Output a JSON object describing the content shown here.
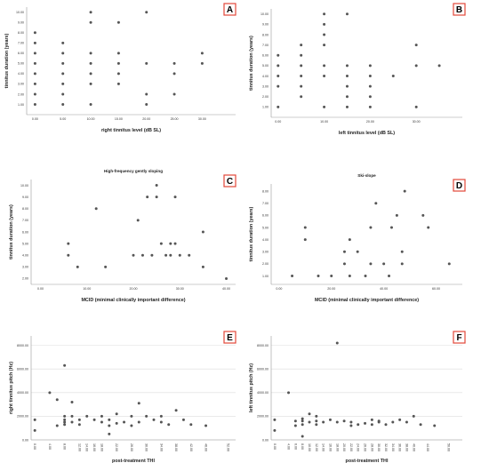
{
  "figure": {
    "panels": [
      {
        "id": "A",
        "title": "",
        "xlabel": "right tinnitus level (dB SL)",
        "ylabel": "tinnitus duration (years)",
        "xlim": [
          -1.5,
          36
        ],
        "ylim": [
          0,
          10.5
        ],
        "xticks": [
          0,
          5,
          10,
          15,
          20,
          25,
          30
        ],
        "yticks": [
          1,
          2,
          3,
          4,
          5,
          6,
          7,
          8,
          9,
          10
        ],
        "xfmt": 2,
        "yfmt": 2,
        "xrot": false,
        "ygrid": false
      },
      {
        "id": "B",
        "title": "",
        "xlabel": "left tinnitus level (dB SL)",
        "ylabel": "tinnitus duration (years)",
        "xlim": [
          -1.5,
          40
        ],
        "ylim": [
          0,
          10.5
        ],
        "xticks": [
          0,
          10,
          20,
          30
        ],
        "yticks": [
          1,
          2,
          3,
          4,
          5,
          6,
          7,
          8,
          9,
          10
        ],
        "xfmt": 2,
        "yfmt": 2,
        "xrot": false,
        "ygrid": false
      },
      {
        "id": "C",
        "title": "High-frequency gently sloping",
        "xlabel": "MCID (minimal clinically important difference)",
        "ylabel": "tinnitus duration (years)",
        "xlim": [
          -2,
          42
        ],
        "ylim": [
          1.5,
          10.5
        ],
        "xticks": [
          0,
          10,
          20,
          30,
          40
        ],
        "yticks": [
          2,
          3,
          4,
          5,
          6,
          7,
          8,
          9,
          10
        ],
        "xfmt": 2,
        "yfmt": 2,
        "xrot": false,
        "ygrid": false
      },
      {
        "id": "D",
        "title": "Ski-slope",
        "xlabel": "MCID (minimal clinically important difference)",
        "ylabel": "tinnitus duration (years)",
        "xlim": [
          -3,
          70
        ],
        "ylim": [
          0.3,
          8.6
        ],
        "xticks": [
          0,
          20,
          40,
          60
        ],
        "yticks": [
          1,
          2,
          3,
          4,
          5,
          6,
          7,
          8
        ],
        "xfmt": 2,
        "yfmt": 2,
        "xrot": false,
        "ygrid": false
      },
      {
        "id": "E",
        "title": "",
        "xlabel": "post-treatment THI",
        "ylabel": "right tinnitus pitch (Hz)",
        "xlim": [
          -1,
          54
        ],
        "ylim": [
          0,
          8800
        ],
        "xticks": [
          0,
          4,
          8,
          12,
          14,
          16,
          18,
          22,
          26,
          30,
          34,
          38,
          42,
          46,
          52
        ],
        "yticks": [
          0,
          2000,
          4000,
          6000,
          8000
        ],
        "xfmt": 2,
        "yfmt": 2,
        "xrot": true,
        "ygrid": true
      },
      {
        "id": "F",
        "title": "",
        "xlabel": "post-treatment THI",
        "ylabel": "left tinnitus pitch (Hz)",
        "xlim": [
          -1,
          54
        ],
        "ylim": [
          0,
          8800
        ],
        "xticks": [
          0,
          4,
          6,
          8,
          10,
          12,
          14,
          16,
          18,
          20,
          22,
          24,
          26,
          28,
          30,
          32,
          34,
          36,
          38,
          40,
          44,
          50
        ],
        "yticks": [
          0,
          2000,
          4000,
          6000,
          8000
        ],
        "xfmt": 2,
        "yfmt": 2,
        "xrot": true,
        "ygrid": true
      }
    ]
  },
  "chart_data": [
    {
      "panel": "A",
      "type": "scatter",
      "points": [
        [
          0,
          1
        ],
        [
          0,
          2
        ],
        [
          0,
          3
        ],
        [
          0,
          4
        ],
        [
          0,
          5
        ],
        [
          0,
          6
        ],
        [
          0,
          7
        ],
        [
          0,
          8
        ],
        [
          5,
          1
        ],
        [
          5,
          2
        ],
        [
          5,
          3
        ],
        [
          5,
          4
        ],
        [
          5,
          5
        ],
        [
          5,
          6
        ],
        [
          5,
          7
        ],
        [
          10,
          1
        ],
        [
          10,
          3
        ],
        [
          10,
          4
        ],
        [
          10,
          5
        ],
        [
          10,
          6
        ],
        [
          10,
          9
        ],
        [
          10,
          10
        ],
        [
          15,
          3
        ],
        [
          15,
          4
        ],
        [
          15,
          5
        ],
        [
          15,
          6
        ],
        [
          15,
          9
        ],
        [
          20,
          1
        ],
        [
          20,
          2
        ],
        [
          20,
          5
        ],
        [
          20,
          10
        ],
        [
          25,
          2
        ],
        [
          25,
          4
        ],
        [
          25,
          5
        ],
        [
          30,
          5
        ],
        [
          30,
          6
        ]
      ]
    },
    {
      "panel": "B",
      "type": "scatter",
      "points": [
        [
          0,
          1
        ],
        [
          0,
          3
        ],
        [
          0,
          4
        ],
        [
          0,
          5
        ],
        [
          0,
          6
        ],
        [
          5,
          2
        ],
        [
          5,
          3
        ],
        [
          5,
          4
        ],
        [
          5,
          5
        ],
        [
          5,
          6
        ],
        [
          5,
          7
        ],
        [
          10,
          1
        ],
        [
          10,
          4
        ],
        [
          10,
          5
        ],
        [
          10,
          7
        ],
        [
          10,
          8
        ],
        [
          10,
          9
        ],
        [
          10,
          10
        ],
        [
          15,
          1
        ],
        [
          15,
          2
        ],
        [
          15,
          3
        ],
        [
          15,
          4
        ],
        [
          15,
          5
        ],
        [
          15,
          10
        ],
        [
          20,
          1
        ],
        [
          20,
          2
        ],
        [
          20,
          3
        ],
        [
          20,
          4
        ],
        [
          20,
          5
        ],
        [
          25,
          4
        ],
        [
          30,
          1
        ],
        [
          30,
          5
        ],
        [
          30,
          7
        ],
        [
          35,
          5
        ]
      ]
    },
    {
      "panel": "C",
      "type": "scatter",
      "points": [
        [
          6,
          4
        ],
        [
          6,
          5
        ],
        [
          8,
          3
        ],
        [
          12,
          8
        ],
        [
          14,
          3
        ],
        [
          20,
          4
        ],
        [
          21,
          7
        ],
        [
          22,
          4
        ],
        [
          23,
          9
        ],
        [
          24,
          4
        ],
        [
          25,
          9
        ],
        [
          25,
          10
        ],
        [
          26,
          5
        ],
        [
          27,
          4
        ],
        [
          28,
          5
        ],
        [
          28,
          4
        ],
        [
          29,
          9
        ],
        [
          29,
          5
        ],
        [
          30,
          4
        ],
        [
          32,
          4
        ],
        [
          35,
          3
        ],
        [
          35,
          6
        ],
        [
          40,
          2
        ]
      ]
    },
    {
      "panel": "D",
      "type": "scatter",
      "points": [
        [
          5,
          1
        ],
        [
          10,
          4
        ],
        [
          10,
          5
        ],
        [
          15,
          1
        ],
        [
          20,
          1
        ],
        [
          25,
          2
        ],
        [
          25,
          3
        ],
        [
          27,
          1
        ],
        [
          27,
          4
        ],
        [
          30,
          3
        ],
        [
          33,
          1
        ],
        [
          35,
          5
        ],
        [
          35,
          2
        ],
        [
          37,
          7
        ],
        [
          40,
          2
        ],
        [
          42,
          1
        ],
        [
          43,
          5
        ],
        [
          45,
          6
        ],
        [
          47,
          2
        ],
        [
          47,
          3
        ],
        [
          48,
          8
        ],
        [
          55,
          6
        ],
        [
          57,
          5
        ],
        [
          65,
          2
        ]
      ]
    },
    {
      "panel": "E",
      "type": "scatter",
      "points": [
        [
          0,
          800
        ],
        [
          0,
          1700
        ],
        [
          4,
          4000
        ],
        [
          6,
          1200
        ],
        [
          6,
          3400
        ],
        [
          8,
          1300
        ],
        [
          8,
          1500
        ],
        [
          8,
          1700
        ],
        [
          8,
          2000
        ],
        [
          8,
          6300
        ],
        [
          10,
          1500
        ],
        [
          10,
          2000
        ],
        [
          10,
          3200
        ],
        [
          12,
          1300
        ],
        [
          12,
          1700
        ],
        [
          14,
          2000
        ],
        [
          16,
          1700
        ],
        [
          18,
          1500
        ],
        [
          18,
          2000
        ],
        [
          20,
          500
        ],
        [
          20,
          1200
        ],
        [
          20,
          1700
        ],
        [
          22,
          1400
        ],
        [
          22,
          2200
        ],
        [
          24,
          1500
        ],
        [
          26,
          1200
        ],
        [
          26,
          2000
        ],
        [
          28,
          1500
        ],
        [
          28,
          3100
        ],
        [
          30,
          2000
        ],
        [
          32,
          1700
        ],
        [
          34,
          1500
        ],
        [
          34,
          2000
        ],
        [
          36,
          1300
        ],
        [
          38,
          2500
        ],
        [
          40,
          1700
        ],
        [
          42,
          1300
        ],
        [
          46,
          1200
        ]
      ]
    },
    {
      "panel": "F",
      "type": "scatter",
      "points": [
        [
          0,
          800
        ],
        [
          0,
          1700
        ],
        [
          4,
          4000
        ],
        [
          6,
          1200
        ],
        [
          6,
          1600
        ],
        [
          8,
          300
        ],
        [
          8,
          1300
        ],
        [
          8,
          1600
        ],
        [
          8,
          1800
        ],
        [
          10,
          1500
        ],
        [
          10,
          2200
        ],
        [
          12,
          1300
        ],
        [
          12,
          1600
        ],
        [
          12,
          2000
        ],
        [
          14,
          1500
        ],
        [
          16,
          1700
        ],
        [
          18,
          1500
        ],
        [
          18,
          8200
        ],
        [
          20,
          1600
        ],
        [
          22,
          1200
        ],
        [
          22,
          1500
        ],
        [
          24,
          1300
        ],
        [
          26,
          1400
        ],
        [
          28,
          1300
        ],
        [
          28,
          1700
        ],
        [
          30,
          1500
        ],
        [
          30,
          1600
        ],
        [
          32,
          1300
        ],
        [
          34,
          1500
        ],
        [
          36,
          1700
        ],
        [
          38,
          1500
        ],
        [
          40,
          2000
        ],
        [
          42,
          1300
        ],
        [
          46,
          1200
        ]
      ]
    }
  ],
  "style": {
    "point_color": "#555555",
    "grid_color": "#dcdcdc",
    "axis_color": "#999999",
    "label_box_color": "#e2483a"
  }
}
